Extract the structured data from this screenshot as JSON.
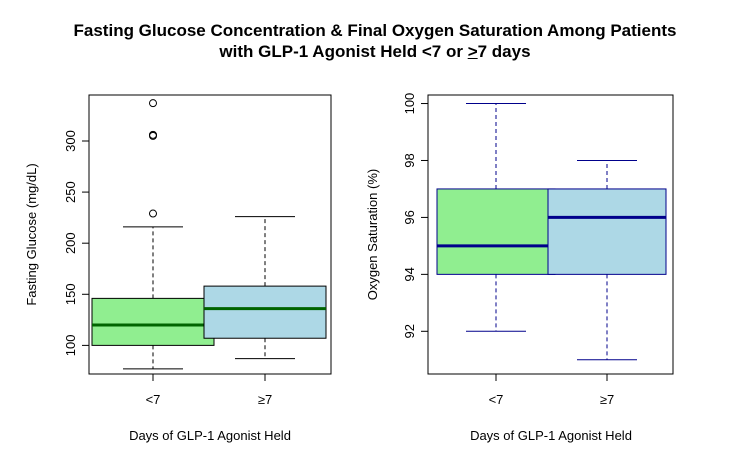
{
  "title": {
    "line1": "Fasting Glucose Concentration & Final Oxygen Saturation Among Patients",
    "line2_prefix": "with GLP-1 Agonist Held <7 or ",
    "line2_underlined": ">",
    "line2_suffix": "7 days"
  },
  "chart_data": [
    {
      "type": "boxplot",
      "ylabel": "Fasting Glucose (mg/dL)",
      "xlabel": "Days of GLP-1 Agonist Held",
      "ylim": [
        72,
        345
      ],
      "yticks": [
        100,
        150,
        200,
        250,
        300
      ],
      "categories": [
        "<7",
        "≥7"
      ],
      "boxes": [
        {
          "category": "<7",
          "min": 77,
          "q1": 100,
          "median": 120,
          "q3": 146,
          "max": 216,
          "outliers": [
            229,
            305,
            306,
            337
          ],
          "fill": "#90EE90",
          "median_color": "#006400"
        },
        {
          "category": "≥7",
          "min": 87,
          "q1": 107,
          "median": 136,
          "q3": 158,
          "max": 226,
          "outliers": [],
          "fill": "#ADD8E6",
          "median_color": "#006400"
        }
      ]
    },
    {
      "type": "boxplot",
      "ylabel": "Oxygen Saturation (%)",
      "xlabel": "Days of GLP-1 Agonist Held",
      "ylim": [
        90.5,
        100.3
      ],
      "yticks": [
        92,
        94,
        96,
        98,
        100
      ],
      "categories": [
        "<7",
        "≥7"
      ],
      "boxes": [
        {
          "category": "<7",
          "min": 92,
          "q1": 94,
          "median": 95,
          "q3": 97,
          "max": 100,
          "outliers": [],
          "fill": "#90EE90",
          "median_color": "#00008B"
        },
        {
          "category": "≥7",
          "min": 91,
          "q1": 94,
          "median": 96,
          "q3": 97,
          "max": 98,
          "outliers": [],
          "fill": "#ADD8E6",
          "median_color": "#00008B"
        }
      ]
    }
  ]
}
